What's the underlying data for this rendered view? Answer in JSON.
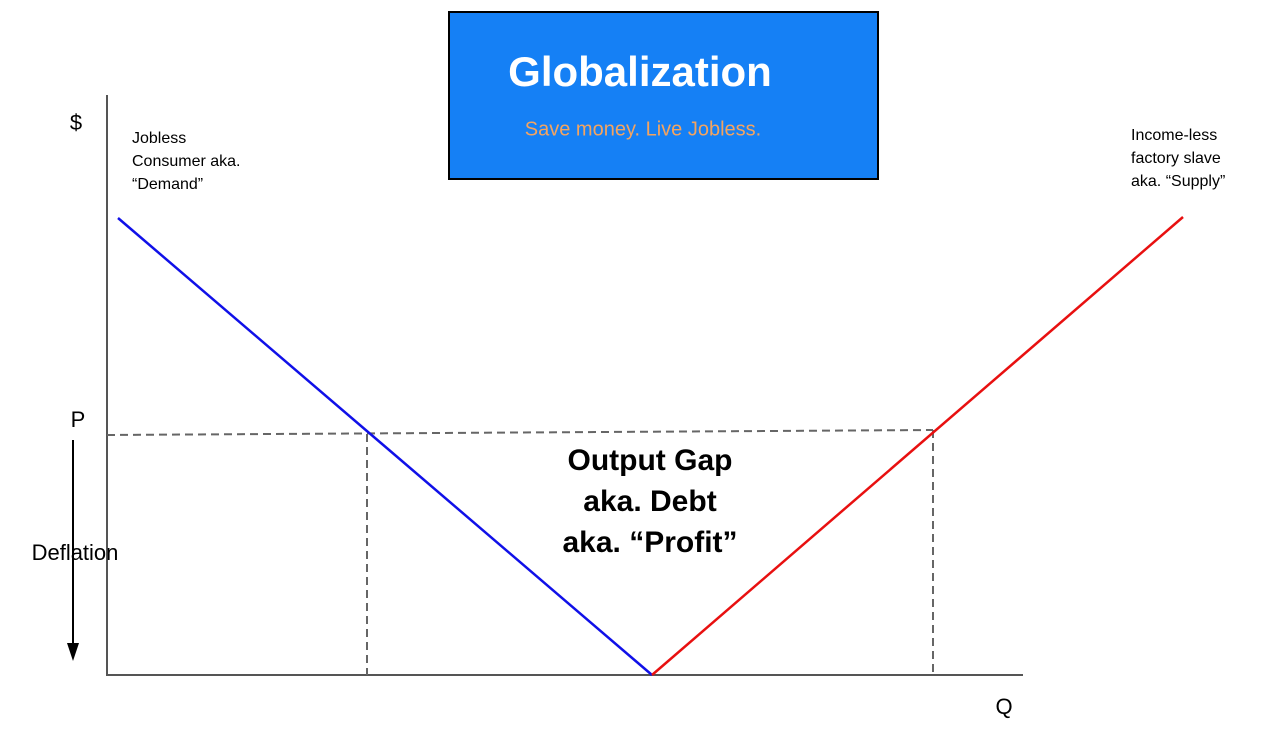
{
  "header": {
    "title": "Globalization",
    "subtitle": "Save money. Live Jobless."
  },
  "axes": {
    "y_label": "$",
    "x_label": "Q"
  },
  "price_label": "P",
  "deflation_label": "Deflation",
  "demand": {
    "label": [
      "Jobless",
      "Consumer aka.",
      "“Demand”"
    ]
  },
  "supply": {
    "label": [
      "Income-less",
      "factory slave",
      "aka. “Supply”"
    ]
  },
  "gap": {
    "label": [
      "Output Gap",
      "aka. Debt",
      "aka. “Profit”"
    ]
  }
}
